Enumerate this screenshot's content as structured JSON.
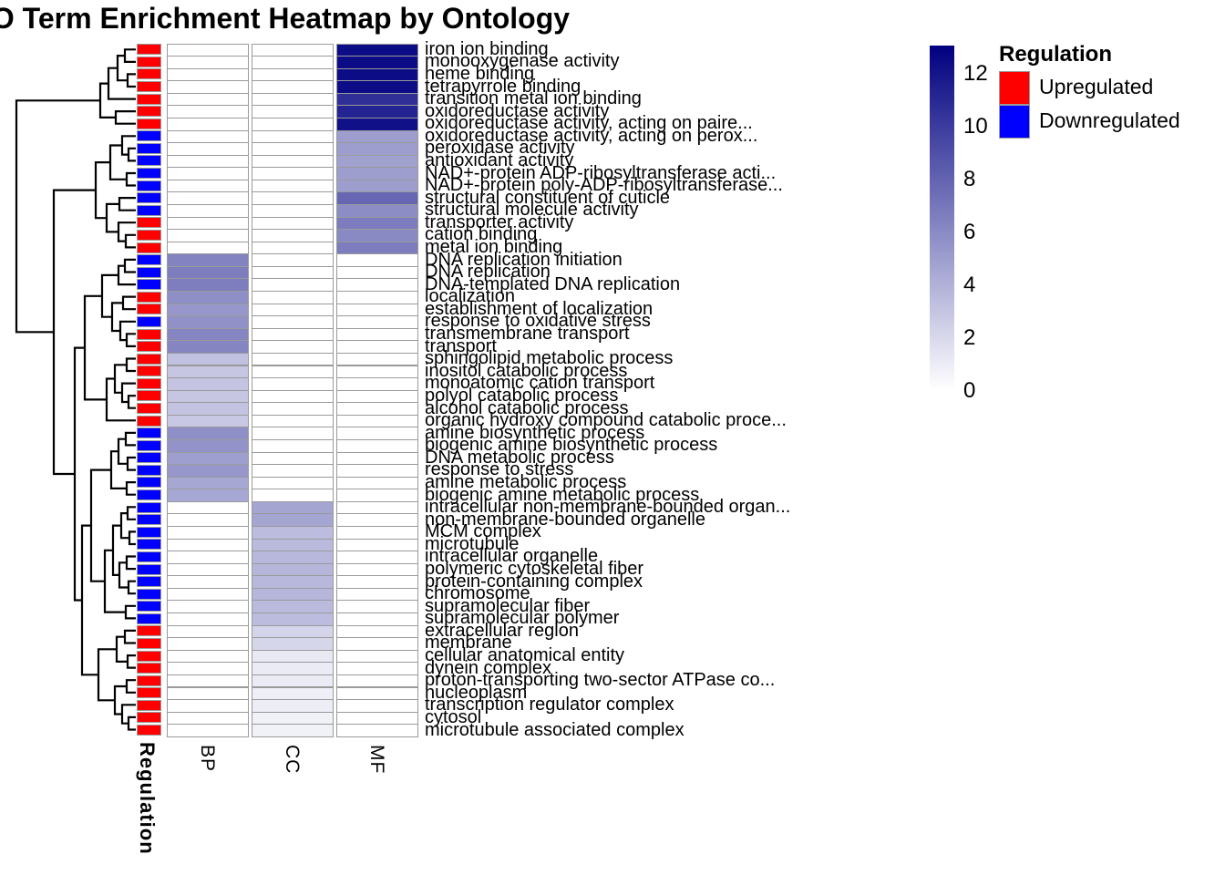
{
  "title": "GO Term Enrichment Heatmap by Ontology",
  "legend": {
    "regulation_title": "Regulation",
    "items": [
      {
        "label": "Upregulated",
        "color": "#FF0000"
      },
      {
        "label": "Downregulated",
        "color": "#0000FF"
      }
    ]
  },
  "chart_data": {
    "type": "heatmap",
    "title": "GO Term Enrichment Heatmap by Ontology",
    "columns": [
      "BP",
      "CC",
      "MF"
    ],
    "row_annotation_name": "Regulation",
    "value_scale": {
      "min": 0,
      "max": 13,
      "low_color": "#FFFFFF",
      "high_color": "#000080",
      "legend_ticks": [
        12,
        10,
        8,
        6,
        4,
        2,
        0
      ]
    },
    "regulation_colors": {
      "Upregulated": "#FF0000",
      "Downregulated": "#0000FF"
    },
    "rows": [
      {
        "label": "iron ion binding",
        "regulation": "Upregulated",
        "values": {
          "BP": 0,
          "CC": 0,
          "MF": 12.4
        }
      },
      {
        "label": "monooxygenase activity",
        "regulation": "Upregulated",
        "values": {
          "BP": 0,
          "CC": 0,
          "MF": 12.4
        }
      },
      {
        "label": "heme binding",
        "regulation": "Upregulated",
        "values": {
          "BP": 0,
          "CC": 0,
          "MF": 12.4
        }
      },
      {
        "label": "tetrapyrrole binding",
        "regulation": "Upregulated",
        "values": {
          "BP": 0,
          "CC": 0,
          "MF": 12.4
        }
      },
      {
        "label": "transition metal ion binding",
        "regulation": "Upregulated",
        "values": {
          "BP": 0,
          "CC": 0,
          "MF": 10.6
        }
      },
      {
        "label": "oxidoreductase activity",
        "regulation": "Upregulated",
        "values": {
          "BP": 0,
          "CC": 0,
          "MF": 11.2
        }
      },
      {
        "label": "oxidoreductase activity, acting on paire...",
        "regulation": "Upregulated",
        "values": {
          "BP": 0,
          "CC": 0,
          "MF": 12.2
        }
      },
      {
        "label": "oxidoreductase activity, acting on perox...",
        "regulation": "Downregulated",
        "values": {
          "BP": 0,
          "CC": 0,
          "MF": 5.0
        }
      },
      {
        "label": "peroxidase activity",
        "regulation": "Downregulated",
        "values": {
          "BP": 0,
          "CC": 0,
          "MF": 5.0
        }
      },
      {
        "label": "antioxidant activity",
        "regulation": "Downregulated",
        "values": {
          "BP": 0,
          "CC": 0,
          "MF": 4.8
        }
      },
      {
        "label": "NAD+-protein ADP-ribosyltransferase acti...",
        "regulation": "Downregulated",
        "values": {
          "BP": 0,
          "CC": 0,
          "MF": 5.0
        }
      },
      {
        "label": "NAD+-protein poly-ADP-ribosyltransferase...",
        "regulation": "Downregulated",
        "values": {
          "BP": 0,
          "CC": 0,
          "MF": 5.0
        }
      },
      {
        "label": "structural constituent of cuticle",
        "regulation": "Downregulated",
        "values": {
          "BP": 0,
          "CC": 0,
          "MF": 7.8
        }
      },
      {
        "label": "structural molecule activity",
        "regulation": "Downregulated",
        "values": {
          "BP": 0,
          "CC": 0,
          "MF": 5.8
        }
      },
      {
        "label": "transporter activity",
        "regulation": "Upregulated",
        "values": {
          "BP": 0,
          "CC": 0,
          "MF": 6.7
        }
      },
      {
        "label": "cation binding",
        "regulation": "Upregulated",
        "values": {
          "BP": 0,
          "CC": 0,
          "MF": 6.0
        }
      },
      {
        "label": "metal ion binding",
        "regulation": "Upregulated",
        "values": {
          "BP": 0,
          "CC": 0,
          "MF": 6.7
        }
      },
      {
        "label": "DNA replication initiation",
        "regulation": "Downregulated",
        "values": {
          "BP": 6.3,
          "CC": 0,
          "MF": 0
        }
      },
      {
        "label": "DNA replication",
        "regulation": "Downregulated",
        "values": {
          "BP": 6.6,
          "CC": 0,
          "MF": 0
        }
      },
      {
        "label": "DNA-templated DNA replication",
        "regulation": "Downregulated",
        "values": {
          "BP": 6.6,
          "CC": 0,
          "MF": 0
        }
      },
      {
        "label": "localization",
        "regulation": "Upregulated",
        "values": {
          "BP": 5.7,
          "CC": 0,
          "MF": 0
        }
      },
      {
        "label": "establishment of localization",
        "regulation": "Upregulated",
        "values": {
          "BP": 5.3,
          "CC": 0,
          "MF": 0
        }
      },
      {
        "label": "response to oxidative stress",
        "regulation": "Downregulated",
        "values": {
          "BP": 5.6,
          "CC": 0,
          "MF": 0
        }
      },
      {
        "label": "transmembrane transport",
        "regulation": "Upregulated",
        "values": {
          "BP": 6.2,
          "CC": 0,
          "MF": 0
        }
      },
      {
        "label": "transport",
        "regulation": "Upregulated",
        "values": {
          "BP": 6.2,
          "CC": 0,
          "MF": 0
        }
      },
      {
        "label": "sphingolipid metabolic process",
        "regulation": "Upregulated",
        "values": {
          "BP": 3.2,
          "CC": 0,
          "MF": 0
        }
      },
      {
        "label": "inositol catabolic process",
        "regulation": "Upregulated",
        "values": {
          "BP": 2.9,
          "CC": 0,
          "MF": 0
        }
      },
      {
        "label": "monoatomic cation transport",
        "regulation": "Upregulated",
        "values": {
          "BP": 3.0,
          "CC": 0,
          "MF": 0
        }
      },
      {
        "label": "polyol catabolic process",
        "regulation": "Upregulated",
        "values": {
          "BP": 2.9,
          "CC": 0,
          "MF": 0
        }
      },
      {
        "label": "alcohol catabolic process",
        "regulation": "Upregulated",
        "values": {
          "BP": 3.0,
          "CC": 0,
          "MF": 0
        }
      },
      {
        "label": "organic hydroxy compound catabolic proce...",
        "regulation": "Upregulated",
        "values": {
          "BP": 2.8,
          "CC": 0,
          "MF": 0
        }
      },
      {
        "label": "amine biosynthetic process",
        "regulation": "Downregulated",
        "values": {
          "BP": 5.7,
          "CC": 0,
          "MF": 0
        }
      },
      {
        "label": "biogenic amine biosynthetic process",
        "regulation": "Downregulated",
        "values": {
          "BP": 5.5,
          "CC": 0,
          "MF": 0
        }
      },
      {
        "label": "DNA metabolic process",
        "regulation": "Downregulated",
        "values": {
          "BP": 4.9,
          "CC": 0,
          "MF": 0
        }
      },
      {
        "label": "response to stress",
        "regulation": "Downregulated",
        "values": {
          "BP": 5.3,
          "CC": 0,
          "MF": 0
        }
      },
      {
        "label": "amine metabolic process",
        "regulation": "Downregulated",
        "values": {
          "BP": 4.5,
          "CC": 0,
          "MF": 0
        }
      },
      {
        "label": "biogenic amine metabolic process",
        "regulation": "Downregulated",
        "values": {
          "BP": 4.5,
          "CC": 0,
          "MF": 0
        }
      },
      {
        "label": "intracellular non-membrane-bounded organ...",
        "regulation": "Downregulated",
        "values": {
          "BP": 0,
          "CC": 4.6,
          "MF": 0
        }
      },
      {
        "label": "non-membrane-bounded organelle",
        "regulation": "Downregulated",
        "values": {
          "BP": 0,
          "CC": 4.6,
          "MF": 0
        }
      },
      {
        "label": "MCM complex",
        "regulation": "Downregulated",
        "values": {
          "BP": 0,
          "CC": 3.4,
          "MF": 0
        }
      },
      {
        "label": "microtubule",
        "regulation": "Downregulated",
        "values": {
          "BP": 0,
          "CC": 3.5,
          "MF": 0
        }
      },
      {
        "label": "intracellular organelle",
        "regulation": "Downregulated",
        "values": {
          "BP": 0,
          "CC": 3.6,
          "MF": 0
        }
      },
      {
        "label": "polymeric cytoskeletal fiber",
        "regulation": "Downregulated",
        "values": {
          "BP": 0,
          "CC": 3.7,
          "MF": 0
        }
      },
      {
        "label": "protein-containing complex",
        "regulation": "Downregulated",
        "values": {
          "BP": 0,
          "CC": 3.6,
          "MF": 0
        }
      },
      {
        "label": "chromosome",
        "regulation": "Downregulated",
        "values": {
          "BP": 0,
          "CC": 3.7,
          "MF": 0
        }
      },
      {
        "label": "supramolecular fiber",
        "regulation": "Downregulated",
        "values": {
          "BP": 0,
          "CC": 3.5,
          "MF": 0
        }
      },
      {
        "label": "supramolecular polymer",
        "regulation": "Downregulated",
        "values": {
          "BP": 0,
          "CC": 3.4,
          "MF": 0
        }
      },
      {
        "label": "extracellular region",
        "regulation": "Upregulated",
        "values": {
          "BP": 0,
          "CC": 2.2,
          "MF": 0
        }
      },
      {
        "label": "membrane",
        "regulation": "Upregulated",
        "values": {
          "BP": 0,
          "CC": 2.1,
          "MF": 0
        }
      },
      {
        "label": "cellular anatomical entity",
        "regulation": "Upregulated",
        "values": {
          "BP": 0,
          "CC": 1.1,
          "MF": 0
        }
      },
      {
        "label": "dynein complex",
        "regulation": "Upregulated",
        "values": {
          "BP": 0,
          "CC": 1.0,
          "MF": 0
        }
      },
      {
        "label": "proton-transporting two-sector ATPase co...",
        "regulation": "Upregulated",
        "values": {
          "BP": 0,
          "CC": 1.0,
          "MF": 0
        }
      },
      {
        "label": "nucleoplasm",
        "regulation": "Upregulated",
        "values": {
          "BP": 0,
          "CC": 0.8,
          "MF": 0
        }
      },
      {
        "label": "transcription regulator complex",
        "regulation": "Upregulated",
        "values": {
          "BP": 0,
          "CC": 0.9,
          "MF": 0
        }
      },
      {
        "label": "cytosol",
        "regulation": "Upregulated",
        "values": {
          "BP": 0,
          "CC": 0.7,
          "MF": 0
        }
      },
      {
        "label": "microtubule associated complex",
        "regulation": "Upregulated",
        "values": {
          "BP": 0,
          "CC": 0.7,
          "MF": 0
        }
      }
    ]
  },
  "dendrogram": {
    "merges": [
      [
        137,
        149,
        54.3,
        149,
        67.9
      ],
      [
        140,
        149,
        81.4,
        149,
        95.0
      ],
      [
        129,
        137,
        61.1,
        140,
        88.2
      ],
      [
        119,
        129,
        74.7,
        149,
        108.6
      ],
      [
        127,
        149,
        122.1,
        149,
        135.7
      ],
      [
        110,
        119,
        91.6,
        127,
        128.9
      ],
      [
        141,
        149,
        162.8,
        149,
        176.4
      ],
      [
        134,
        149,
        149.3,
        141,
        169.6
      ],
      [
        139,
        149,
        190.0,
        149,
        203.5
      ],
      [
        121,
        134,
        159.5,
        139,
        196.8
      ],
      [
        131,
        149,
        217.1,
        149,
        230.7
      ],
      [
        138,
        149,
        257.8,
        149,
        271.4
      ],
      [
        130,
        149,
        244.2,
        138,
        264.6
      ],
      [
        117,
        131,
        223.9,
        130,
        254.4
      ],
      [
        105,
        121,
        178.1,
        117,
        239.2
      ],
      [
        137,
        149,
        284.9,
        149,
        298.5
      ],
      [
        130,
        137,
        291.7,
        149,
        312.1
      ],
      [
        135,
        149,
        325.6,
        149,
        339.2
      ],
      [
        139,
        149,
        366.3,
        149,
        379.9
      ],
      [
        132,
        149,
        352.8,
        139,
        373.1
      ],
      [
        123,
        135,
        332.4,
        132,
        363.0
      ],
      [
        112,
        130,
        301.9,
        123,
        347.7
      ],
      [
        139,
        149,
        393.5,
        149,
        407.0
      ],
      [
        141,
        149,
        434.2,
        149,
        447.7
      ],
      [
        134,
        149,
        420.6,
        141,
        441.0
      ],
      [
        126,
        139,
        400.3,
        134,
        430.8
      ],
      [
        117,
        126,
        415.5,
        149,
        461.3
      ],
      [
        93,
        112,
        324.8,
        117,
        438.4
      ],
      [
        138,
        149,
        474.9,
        149,
        488.4
      ],
      [
        140,
        149,
        502.0,
        149,
        515.6
      ],
      [
        130,
        138,
        481.7,
        140,
        508.8
      ],
      [
        139,
        149,
        529.1,
        149,
        542.7
      ],
      [
        122,
        130,
        495.2,
        139,
        535.9
      ],
      [
        140,
        149,
        556.3,
        149,
        569.8
      ],
      [
        142,
        149,
        583.4,
        149,
        597.0
      ],
      [
        133,
        140,
        563.1,
        142,
        590.2
      ],
      [
        139,
        149,
        610.5,
        149,
        624.1
      ],
      [
        141,
        149,
        637.7,
        149,
        651.2
      ],
      [
        131,
        139,
        617.3,
        141,
        644.5
      ],
      [
        124,
        133,
        576.6,
        131,
        630.9
      ],
      [
        138,
        149,
        664.8,
        149,
        678.4
      ],
      [
        115,
        124,
        603.8,
        138,
        671.6
      ],
      [
        100,
        122,
        515.6,
        115,
        637.7
      ],
      [
        137,
        149,
        691.9,
        149,
        705.5
      ],
      [
        140,
        149,
        719.1,
        149,
        732.6
      ],
      [
        128,
        137,
        698.7,
        140,
        725.9
      ],
      [
        139,
        149,
        746.2,
        149,
        759.8
      ],
      [
        141,
        149,
        786.9,
        149,
        800.5
      ],
      [
        134,
        149,
        773.3,
        141,
        793.7
      ],
      [
        126,
        139,
        753.0,
        134,
        783.5
      ],
      [
        108,
        128,
        712.3,
        126,
        768.3
      ],
      [
        90,
        100,
        576.6,
        108,
        740.3
      ],
      [
        82,
        93,
        381.6,
        90,
        658.5
      ],
      [
        59,
        105,
        208.6,
        82,
        520.0
      ],
      [
        18,
        110,
        110.3,
        59,
        364.3
      ]
    ]
  }
}
